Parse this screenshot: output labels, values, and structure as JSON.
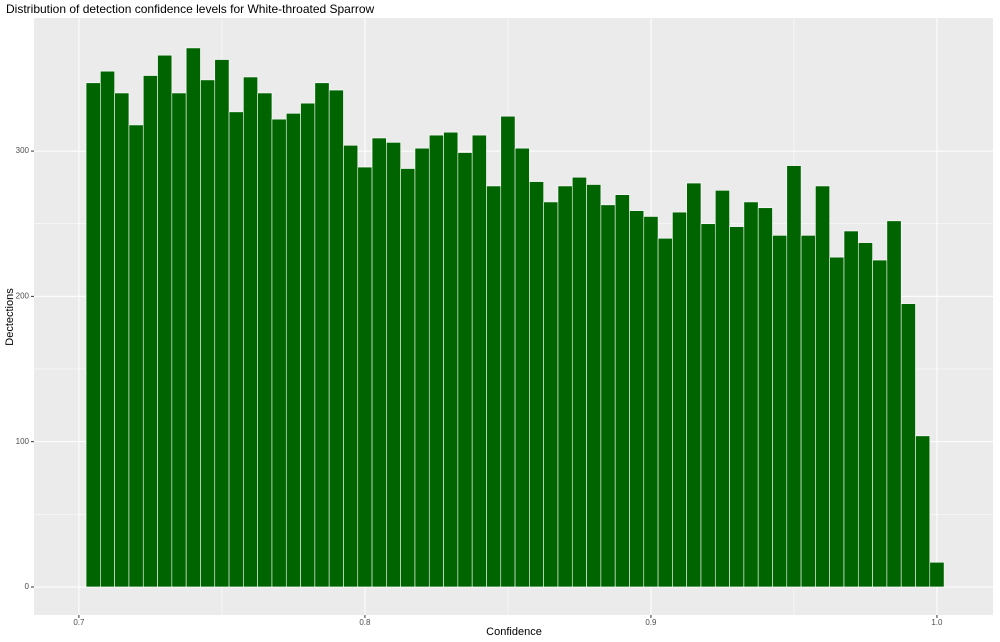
{
  "chart_data": {
    "type": "histogram",
    "title": "Distribution of detection confidence levels for White-throated Sparrow",
    "x_label": "Confidence",
    "y_label": "Dectections",
    "bins": [
      0.7025,
      0.7075,
      0.7125,
      0.7175,
      0.7225,
      0.7275,
      0.7325,
      0.7375,
      0.7425,
      0.7475,
      0.7525,
      0.7575,
      0.7625,
      0.7675,
      0.7725,
      0.7775,
      0.7825,
      0.7875,
      0.7925,
      0.7975,
      0.8025,
      0.8075,
      0.8125,
      0.8175,
      0.8225,
      0.8275,
      0.8325,
      0.8375,
      0.8425,
      0.8475,
      0.8525,
      0.8575,
      0.8625,
      0.8675,
      0.8725,
      0.8775,
      0.8825,
      0.8875,
      0.8925,
      0.8975,
      0.9025,
      0.9075,
      0.9125,
      0.9175,
      0.9225,
      0.9275,
      0.9325,
      0.9375,
      0.9425,
      0.9475,
      0.9525,
      0.9575,
      0.9625,
      0.9675,
      0.9725,
      0.9775,
      0.9825,
      0.9875,
      0.9925,
      0.9975,
      1.0025
    ],
    "values": [
      347,
      355,
      340,
      318,
      352,
      366,
      340,
      371,
      349,
      363,
      327,
      351,
      340,
      322,
      326,
      333,
      347,
      342,
      304,
      289,
      309,
      306,
      288,
      302,
      311,
      313,
      299,
      311,
      276,
      324,
      302,
      279,
      265,
      276,
      282,
      277,
      263,
      270,
      259,
      255,
      240,
      258,
      278,
      250,
      273,
      248,
      265,
      261,
      242,
      290,
      242,
      276,
      227,
      245,
      237,
      225,
      252,
      195,
      104,
      17
    ],
    "color": "#006400",
    "xlim": [
      0.6843,
      1.0196
    ],
    "xticks": [
      0.7,
      0.8,
      0.9,
      {
        "value": 1,
        "label": "1.0"
      }
    ],
    "ylim": [
      -19.3,
      391.6
    ],
    "yticks": [
      0,
      100,
      200,
      300
    ],
    "grid": true
  }
}
